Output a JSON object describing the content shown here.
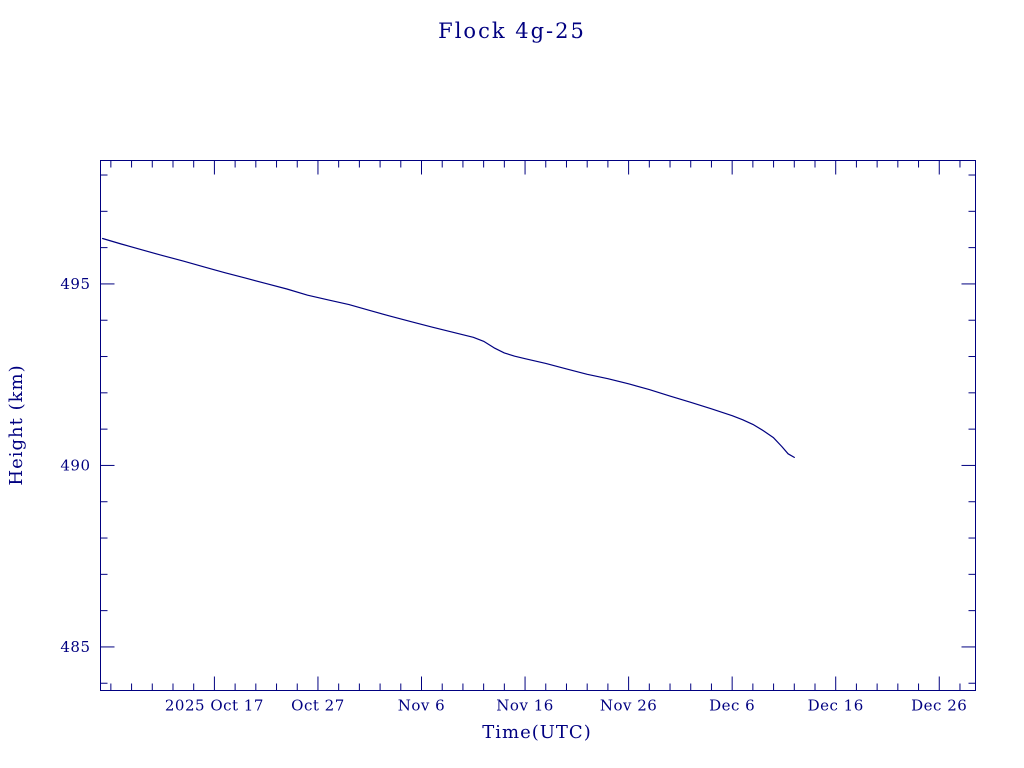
{
  "page": {
    "title": "Flock 4g-25"
  },
  "chart_data": {
    "type": "line",
    "title": "Flock 4g-25",
    "xlabel": "Time(UTC)",
    "ylabel": "Height (km)",
    "color": "#000080",
    "background": "#ffffff",
    "x_unit": "days since 2025-10-01 UTC",
    "xlim": [
      6.0,
      90.5
    ],
    "ylim": [
      483.8,
      498.4
    ],
    "x_minor_step": 2,
    "y_minor_step": 1,
    "x_ticks": [
      {
        "day": 17,
        "label": "2025 Oct 17"
      },
      {
        "day": 27,
        "label": "Oct 27"
      },
      {
        "day": 37,
        "label": "Nov 6"
      },
      {
        "day": 47,
        "label": "Nov 16"
      },
      {
        "day": 57,
        "label": "Nov 26"
      },
      {
        "day": 67,
        "label": "Dec 6"
      },
      {
        "day": 77,
        "label": "Dec 16"
      },
      {
        "day": 87,
        "label": "Dec 26"
      }
    ],
    "y_ticks": [
      {
        "value": 485,
        "label": "485"
      },
      {
        "value": 490,
        "label": "490"
      },
      {
        "value": 495,
        "label": "495"
      }
    ],
    "series": [
      {
        "name": "Flock 4g-25 mean height",
        "points": [
          [
            6.2,
            496.25
          ],
          [
            8,
            496.1
          ],
          [
            10,
            495.94
          ],
          [
            12,
            495.78
          ],
          [
            14,
            495.63
          ],
          [
            16,
            495.47
          ],
          [
            17,
            495.39
          ],
          [
            18,
            495.31
          ],
          [
            20,
            495.16
          ],
          [
            22,
            495.01
          ],
          [
            24,
            494.86
          ],
          [
            26,
            494.69
          ],
          [
            28,
            494.56
          ],
          [
            30,
            494.43
          ],
          [
            32,
            494.27
          ],
          [
            34,
            494.11
          ],
          [
            36,
            493.96
          ],
          [
            38,
            493.81
          ],
          [
            40,
            493.67
          ],
          [
            42,
            493.53
          ],
          [
            43,
            493.42
          ],
          [
            44,
            493.24
          ],
          [
            45,
            493.1
          ],
          [
            46,
            493.01
          ],
          [
            47,
            492.94
          ],
          [
            49,
            492.81
          ],
          [
            51,
            492.66
          ],
          [
            53,
            492.51
          ],
          [
            55,
            492.39
          ],
          [
            57,
            492.25
          ],
          [
            59,
            492.09
          ],
          [
            61,
            491.91
          ],
          [
            63,
            491.74
          ],
          [
            65,
            491.56
          ],
          [
            67,
            491.37
          ],
          [
            68,
            491.26
          ],
          [
            69,
            491.13
          ],
          [
            70,
            490.96
          ],
          [
            71,
            490.76
          ],
          [
            71.8,
            490.52
          ],
          [
            72.4,
            490.32
          ],
          [
            73,
            490.22
          ]
        ]
      }
    ]
  }
}
